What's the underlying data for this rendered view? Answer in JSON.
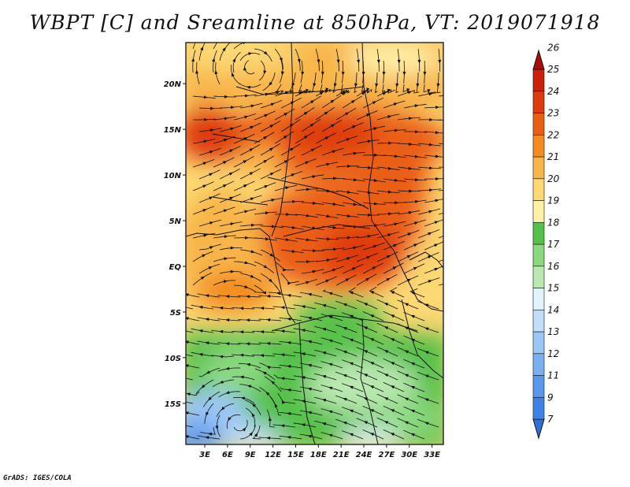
{
  "title": "WBPT [C] and Sreamline at 850hPa, VT: 2019071918",
  "footer": "GrADS: IGES/COLA",
  "map": {
    "lat_labels": [
      "20N",
      "15N",
      "10N",
      "5N",
      "EQ",
      "5S",
      "10S",
      "15S"
    ],
    "lon_labels": [
      "3E",
      "6E",
      "9E",
      "12E",
      "15E",
      "18E",
      "21E",
      "24E",
      "27E",
      "30E",
      "33E"
    ],
    "lat_range": [
      -19.5,
      24.5
    ],
    "lon_range": [
      0.5,
      34.5
    ]
  },
  "colorbar": {
    "labels": [
      "7",
      "9",
      "11",
      "12",
      "13",
      "14",
      "15",
      "16",
      "17",
      "18",
      "19",
      "20",
      "21",
      "22",
      "23",
      "24",
      "25",
      "26"
    ],
    "colors": [
      "#2f6fd8",
      "#3f82e6",
      "#5a98ee",
      "#7aaff2",
      "#9cc6f6",
      "#c2ddf8",
      "#e2f3fb",
      "#b9e8b0",
      "#8ad87f",
      "#55c14a",
      "#fff1a8",
      "#fcd873",
      "#f8b548",
      "#f38b1f",
      "#ea5e12",
      "#de3a10",
      "#cc1f0e",
      "#aa0e0a"
    ]
  }
}
